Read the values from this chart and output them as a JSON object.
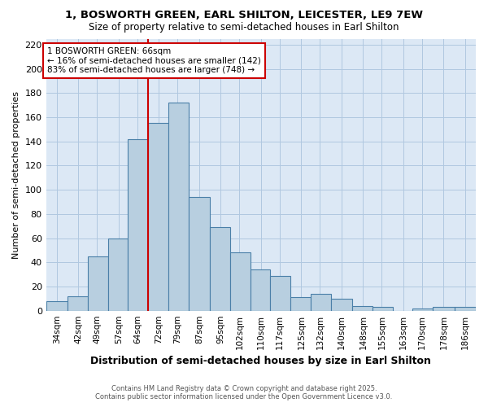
{
  "title1": "1, BOSWORTH GREEN, EARL SHILTON, LEICESTER, LE9 7EW",
  "title2": "Size of property relative to semi-detached houses in Earl Shilton",
  "xlabel": "Distribution of semi-detached houses by size in Earl Shilton",
  "ylabel": "Number of semi-detached properties",
  "footer1": "Contains HM Land Registry data © Crown copyright and database right 2025.",
  "footer2": "Contains public sector information licensed under the Open Government Licence v3.0.",
  "annotation_line1": "1 BOSWORTH GREEN: 66sqm",
  "annotation_line2": "← 16% of semi-detached houses are smaller (142)",
  "annotation_line3": "83% of semi-detached houses are larger (748) →",
  "property_size": 66,
  "bar_color": "#b8cfe0",
  "bar_edge_color": "#4a7fa8",
  "vline_color": "#cc0000",
  "annotation_box_edge": "#cc0000",
  "plot_bg_color": "#dce8f5",
  "fig_bg_color": "#ffffff",
  "grid_color": "#b0c8e0",
  "categories": [
    "34sqm",
    "42sqm",
    "49sqm",
    "57sqm",
    "64sqm",
    "72sqm",
    "79sqm",
    "87sqm",
    "95sqm",
    "102sqm",
    "110sqm",
    "117sqm",
    "125sqm",
    "132sqm",
    "140sqm",
    "148sqm",
    "155sqm",
    "163sqm",
    "170sqm",
    "178sqm",
    "186sqm"
  ],
  "bin_centers": [
    34,
    42,
    49,
    57,
    64,
    72,
    79,
    87,
    95,
    102,
    110,
    117,
    125,
    132,
    140,
    148,
    155,
    163,
    170,
    178,
    186
  ],
  "values": [
    8,
    12,
    45,
    60,
    142,
    155,
    172,
    94,
    69,
    48,
    34,
    29,
    11,
    14,
    10,
    4,
    3,
    0,
    2,
    3,
    3
  ],
  "ylim": [
    0,
    225
  ],
  "yticks": [
    0,
    20,
    40,
    60,
    80,
    100,
    120,
    140,
    160,
    180,
    200,
    220
  ]
}
